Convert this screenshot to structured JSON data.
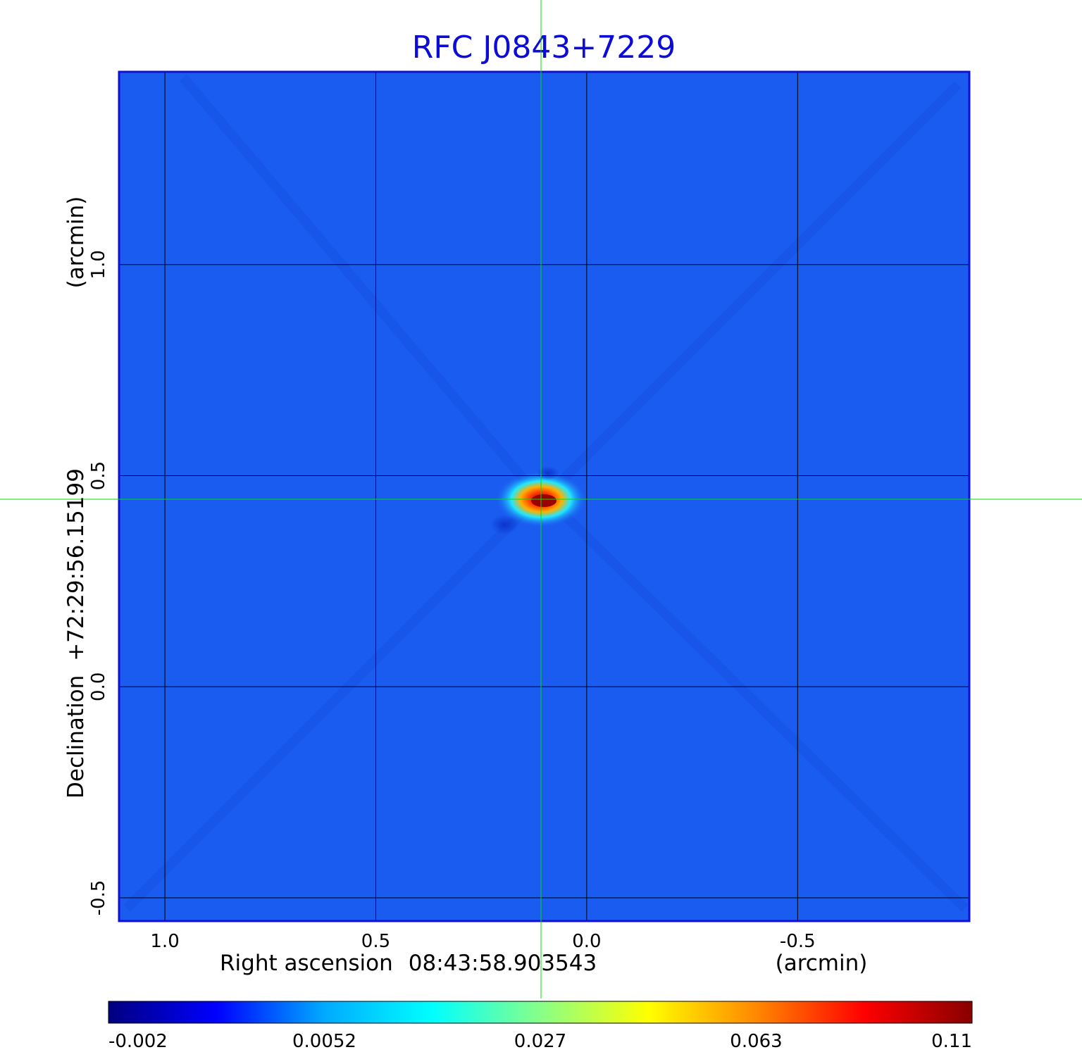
{
  "chart_data": {
    "type": "heatmap",
    "title": "RFC J0843+7229",
    "xlabel_prefix": "Right ascension",
    "xlabel_value": "08:43:58.903543",
    "xlabel_unit": "(arcmin)",
    "ylabel_prefix": "Declination",
    "ylabel_value": "+72:29:56.15199",
    "ylabel_unit": "(arcmin)",
    "x_ticks": [
      "1.0",
      "0.5",
      "0.0",
      "-0.5"
    ],
    "x_tick_values": [
      1.0,
      0.5,
      0.0,
      -0.5
    ],
    "y_ticks": [
      "1.0",
      "0.5",
      "0.0",
      "-0.5"
    ],
    "y_tick_values": [
      1.0,
      0.5,
      0.0,
      -0.5
    ],
    "xlim": [
      1.107,
      -0.907
    ],
    "ylim": [
      -0.555,
      1.455
    ],
    "grid": true,
    "crosshair": {
      "x": 0.107,
      "y": 0.443
    },
    "peak": {
      "x": 0.107,
      "y": 0.443,
      "value": 0.11
    },
    "colorbar": {
      "colormap": "jet",
      "ticks": [
        "-0.002",
        "0.0052",
        "0.027",
        "0.063",
        "0.11"
      ],
      "tick_fractions": [
        0,
        0.25,
        0.5,
        0.75,
        1
      ],
      "colors": [
        "#000080",
        "#0000ff",
        "#00aaff",
        "#00ffff",
        "#88ff88",
        "#ffff00",
        "#ff8800",
        "#ff0000",
        "#880000"
      ]
    },
    "colors": {
      "title": "#0c0cd6",
      "background_map": "#1a5cf0",
      "frame": "#1010d0",
      "grid": "#000000",
      "crosshair": "#00e000"
    }
  }
}
